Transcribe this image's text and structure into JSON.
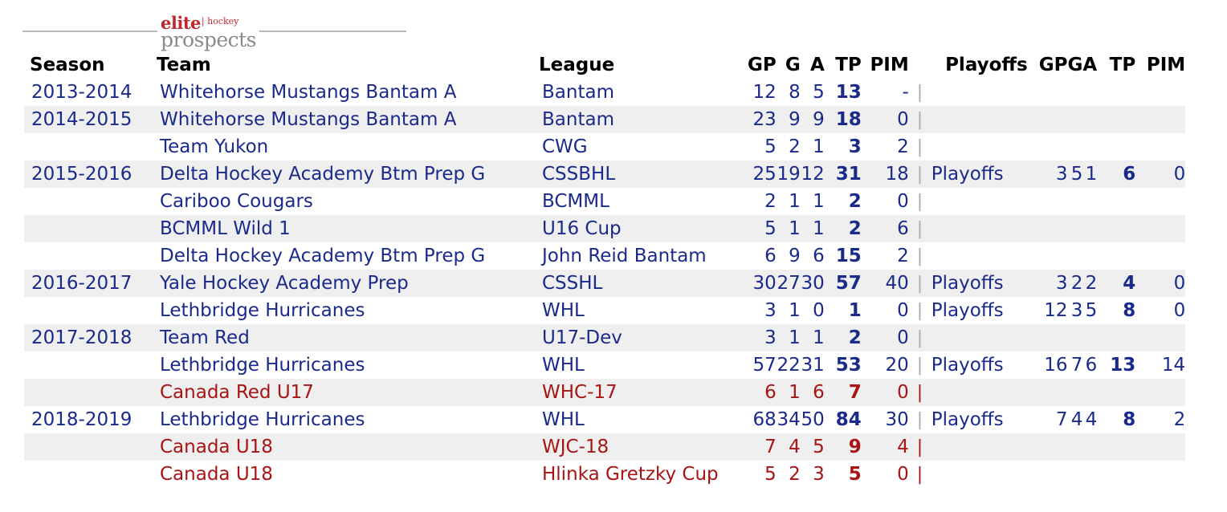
{
  "logo": {
    "word1": "elite",
    "word2": "hockey",
    "word3": "prospects"
  },
  "headers": {
    "season": "Season",
    "team": "Team",
    "league": "League",
    "gp": "GP",
    "g": "G",
    "a": "A",
    "tp": "TP",
    "pim": "PIM",
    "playoffs": "Playoffs",
    "pgp": "GP",
    "pg": "G",
    "pa": "A",
    "ptp": "TP",
    "ppim": "PIM"
  },
  "separator": "|",
  "colors": {
    "link_blue": "#1a2a8a",
    "international_red": "#a81414",
    "stripe": "#efefef"
  },
  "rows": [
    {
      "season": "2013-2014",
      "team": "Whitehorse Mustangs Bantam A",
      "league": "Bantam",
      "gp": "12",
      "g": "8",
      "a": "5",
      "tp": "13",
      "pim": "-",
      "po": "",
      "pgp": "",
      "pg": "",
      "pa": "",
      "ptp": "",
      "ppim": "",
      "intl": false
    },
    {
      "season": "2014-2015",
      "team": "Whitehorse Mustangs Bantam A",
      "league": "Bantam",
      "gp": "23",
      "g": "9",
      "a": "9",
      "tp": "18",
      "pim": "0",
      "po": "",
      "pgp": "",
      "pg": "",
      "pa": "",
      "ptp": "",
      "ppim": "",
      "intl": false
    },
    {
      "season": "",
      "team": "Team Yukon",
      "league": "CWG",
      "gp": "5",
      "g": "2",
      "a": "1",
      "tp": "3",
      "pim": "2",
      "po": "",
      "pgp": "",
      "pg": "",
      "pa": "",
      "ptp": "",
      "ppim": "",
      "intl": false
    },
    {
      "season": "2015-2016",
      "team": "Delta Hockey Academy Btm Prep G",
      "league": "CSSBHL",
      "gp": "25",
      "g": "19",
      "a": "12",
      "tp": "31",
      "pim": "18",
      "po": "Playoffs",
      "pgp": "3",
      "pg": "5",
      "pa": "1",
      "ptp": "6",
      "ppim": "0",
      "intl": false
    },
    {
      "season": "",
      "team": "Cariboo Cougars",
      "league": "BCMML",
      "gp": "2",
      "g": "1",
      "a": "1",
      "tp": "2",
      "pim": "0",
      "po": "",
      "pgp": "",
      "pg": "",
      "pa": "",
      "ptp": "",
      "ppim": "",
      "intl": false
    },
    {
      "season": "",
      "team": "BCMML Wild 1",
      "league": "U16 Cup",
      "gp": "5",
      "g": "1",
      "a": "1",
      "tp": "2",
      "pim": "6",
      "po": "",
      "pgp": "",
      "pg": "",
      "pa": "",
      "ptp": "",
      "ppim": "",
      "intl": false
    },
    {
      "season": "",
      "team": "Delta Hockey Academy Btm Prep G",
      "league": "John Reid Bantam",
      "gp": "6",
      "g": "9",
      "a": "6",
      "tp": "15",
      "pim": "2",
      "po": "",
      "pgp": "",
      "pg": "",
      "pa": "",
      "ptp": "",
      "ppim": "",
      "intl": false
    },
    {
      "season": "2016-2017",
      "team": "Yale Hockey Academy Prep",
      "league": "CSSHL",
      "gp": "30",
      "g": "27",
      "a": "30",
      "tp": "57",
      "pim": "40",
      "po": "Playoffs",
      "pgp": "3",
      "pg": "2",
      "pa": "2",
      "ptp": "4",
      "ppim": "0",
      "intl": false
    },
    {
      "season": "",
      "team": "Lethbridge Hurricanes",
      "league": "WHL",
      "gp": "3",
      "g": "1",
      "a": "0",
      "tp": "1",
      "pim": "0",
      "po": "Playoffs",
      "pgp": "12",
      "pg": "3",
      "pa": "5",
      "ptp": "8",
      "ppim": "0",
      "intl": false
    },
    {
      "season": "2017-2018",
      "team": "Team Red",
      "league": "U17-Dev",
      "gp": "3",
      "g": "1",
      "a": "1",
      "tp": "2",
      "pim": "0",
      "po": "",
      "pgp": "",
      "pg": "",
      "pa": "",
      "ptp": "",
      "ppim": "",
      "intl": false
    },
    {
      "season": "",
      "team": "Lethbridge Hurricanes",
      "league": "WHL",
      "gp": "57",
      "g": "22",
      "a": "31",
      "tp": "53",
      "pim": "20",
      "po": "Playoffs",
      "pgp": "16",
      "pg": "7",
      "pa": "6",
      "ptp": "13",
      "ppim": "14",
      "intl": false
    },
    {
      "season": "",
      "team": "Canada Red U17",
      "league": "WHC-17",
      "gp": "6",
      "g": "1",
      "a": "6",
      "tp": "7",
      "pim": "0",
      "po": "",
      "pgp": "",
      "pg": "",
      "pa": "",
      "ptp": "",
      "ppim": "",
      "intl": true
    },
    {
      "season": "2018-2019",
      "team": "Lethbridge Hurricanes",
      "league": "WHL",
      "gp": "68",
      "g": "34",
      "a": "50",
      "tp": "84",
      "pim": "30",
      "po": "Playoffs",
      "pgp": "7",
      "pg": "4",
      "pa": "4",
      "ptp": "8",
      "ppim": "2",
      "intl": false
    },
    {
      "season": "",
      "team": "Canada U18",
      "league": "WJC-18",
      "gp": "7",
      "g": "4",
      "a": "5",
      "tp": "9",
      "pim": "4",
      "po": "",
      "pgp": "",
      "pg": "",
      "pa": "",
      "ptp": "",
      "ppim": "",
      "intl": true
    },
    {
      "season": "",
      "team": "Canada U18",
      "league": "Hlinka Gretzky Cup",
      "gp": "5",
      "g": "2",
      "a": "3",
      "tp": "5",
      "pim": "0",
      "po": "",
      "pgp": "",
      "pg": "",
      "pa": "",
      "ptp": "",
      "ppim": "",
      "intl": true
    }
  ]
}
